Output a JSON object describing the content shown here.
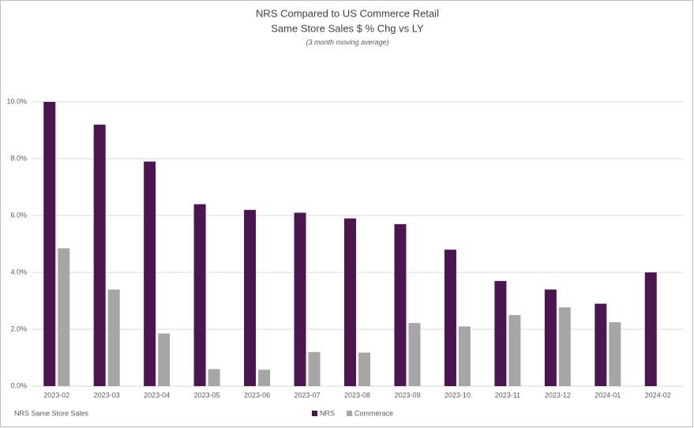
{
  "chart_data": {
    "type": "bar",
    "title": [
      "NRS Compared to US Commerce Retail",
      "Same Store Sales $ % Chg vs LY"
    ],
    "subtitle": "(3 month moving average)",
    "footnote": "NRS Same Store Sales",
    "categories": [
      "2023-02",
      "2023-03",
      "2023-04",
      "2023-05",
      "2023-06",
      "2023-07",
      "2023-08",
      "2023-09",
      "2023-10",
      "2023-11",
      "2023-12",
      "2024-01",
      "2024-02"
    ],
    "series": [
      {
        "name": "NRS",
        "color": "#4b1550",
        "values": [
          10.0,
          9.2,
          7.9,
          6.4,
          6.2,
          6.1,
          5.9,
          5.7,
          4.8,
          3.7,
          3.4,
          2.9,
          4.0
        ]
      },
      {
        "name": "Commerace",
        "color": "#a6a6a6",
        "values": [
          4.85,
          3.4,
          1.85,
          0.6,
          0.58,
          1.2,
          1.18,
          2.22,
          2.1,
          2.5,
          2.77,
          2.25,
          null
        ]
      }
    ],
    "ylim": [
      0,
      10
    ],
    "yticks": [
      {
        "value": 0,
        "label": "0.0%"
      },
      {
        "value": 2,
        "label": "2.0%"
      },
      {
        "value": 4,
        "label": "4.0%"
      },
      {
        "value": 6,
        "label": "6.0%"
      },
      {
        "value": 8,
        "label": "8.0%"
      },
      {
        "value": 10,
        "label": "10.0%"
      }
    ],
    "grid": true,
    "legend": "bottom"
  }
}
